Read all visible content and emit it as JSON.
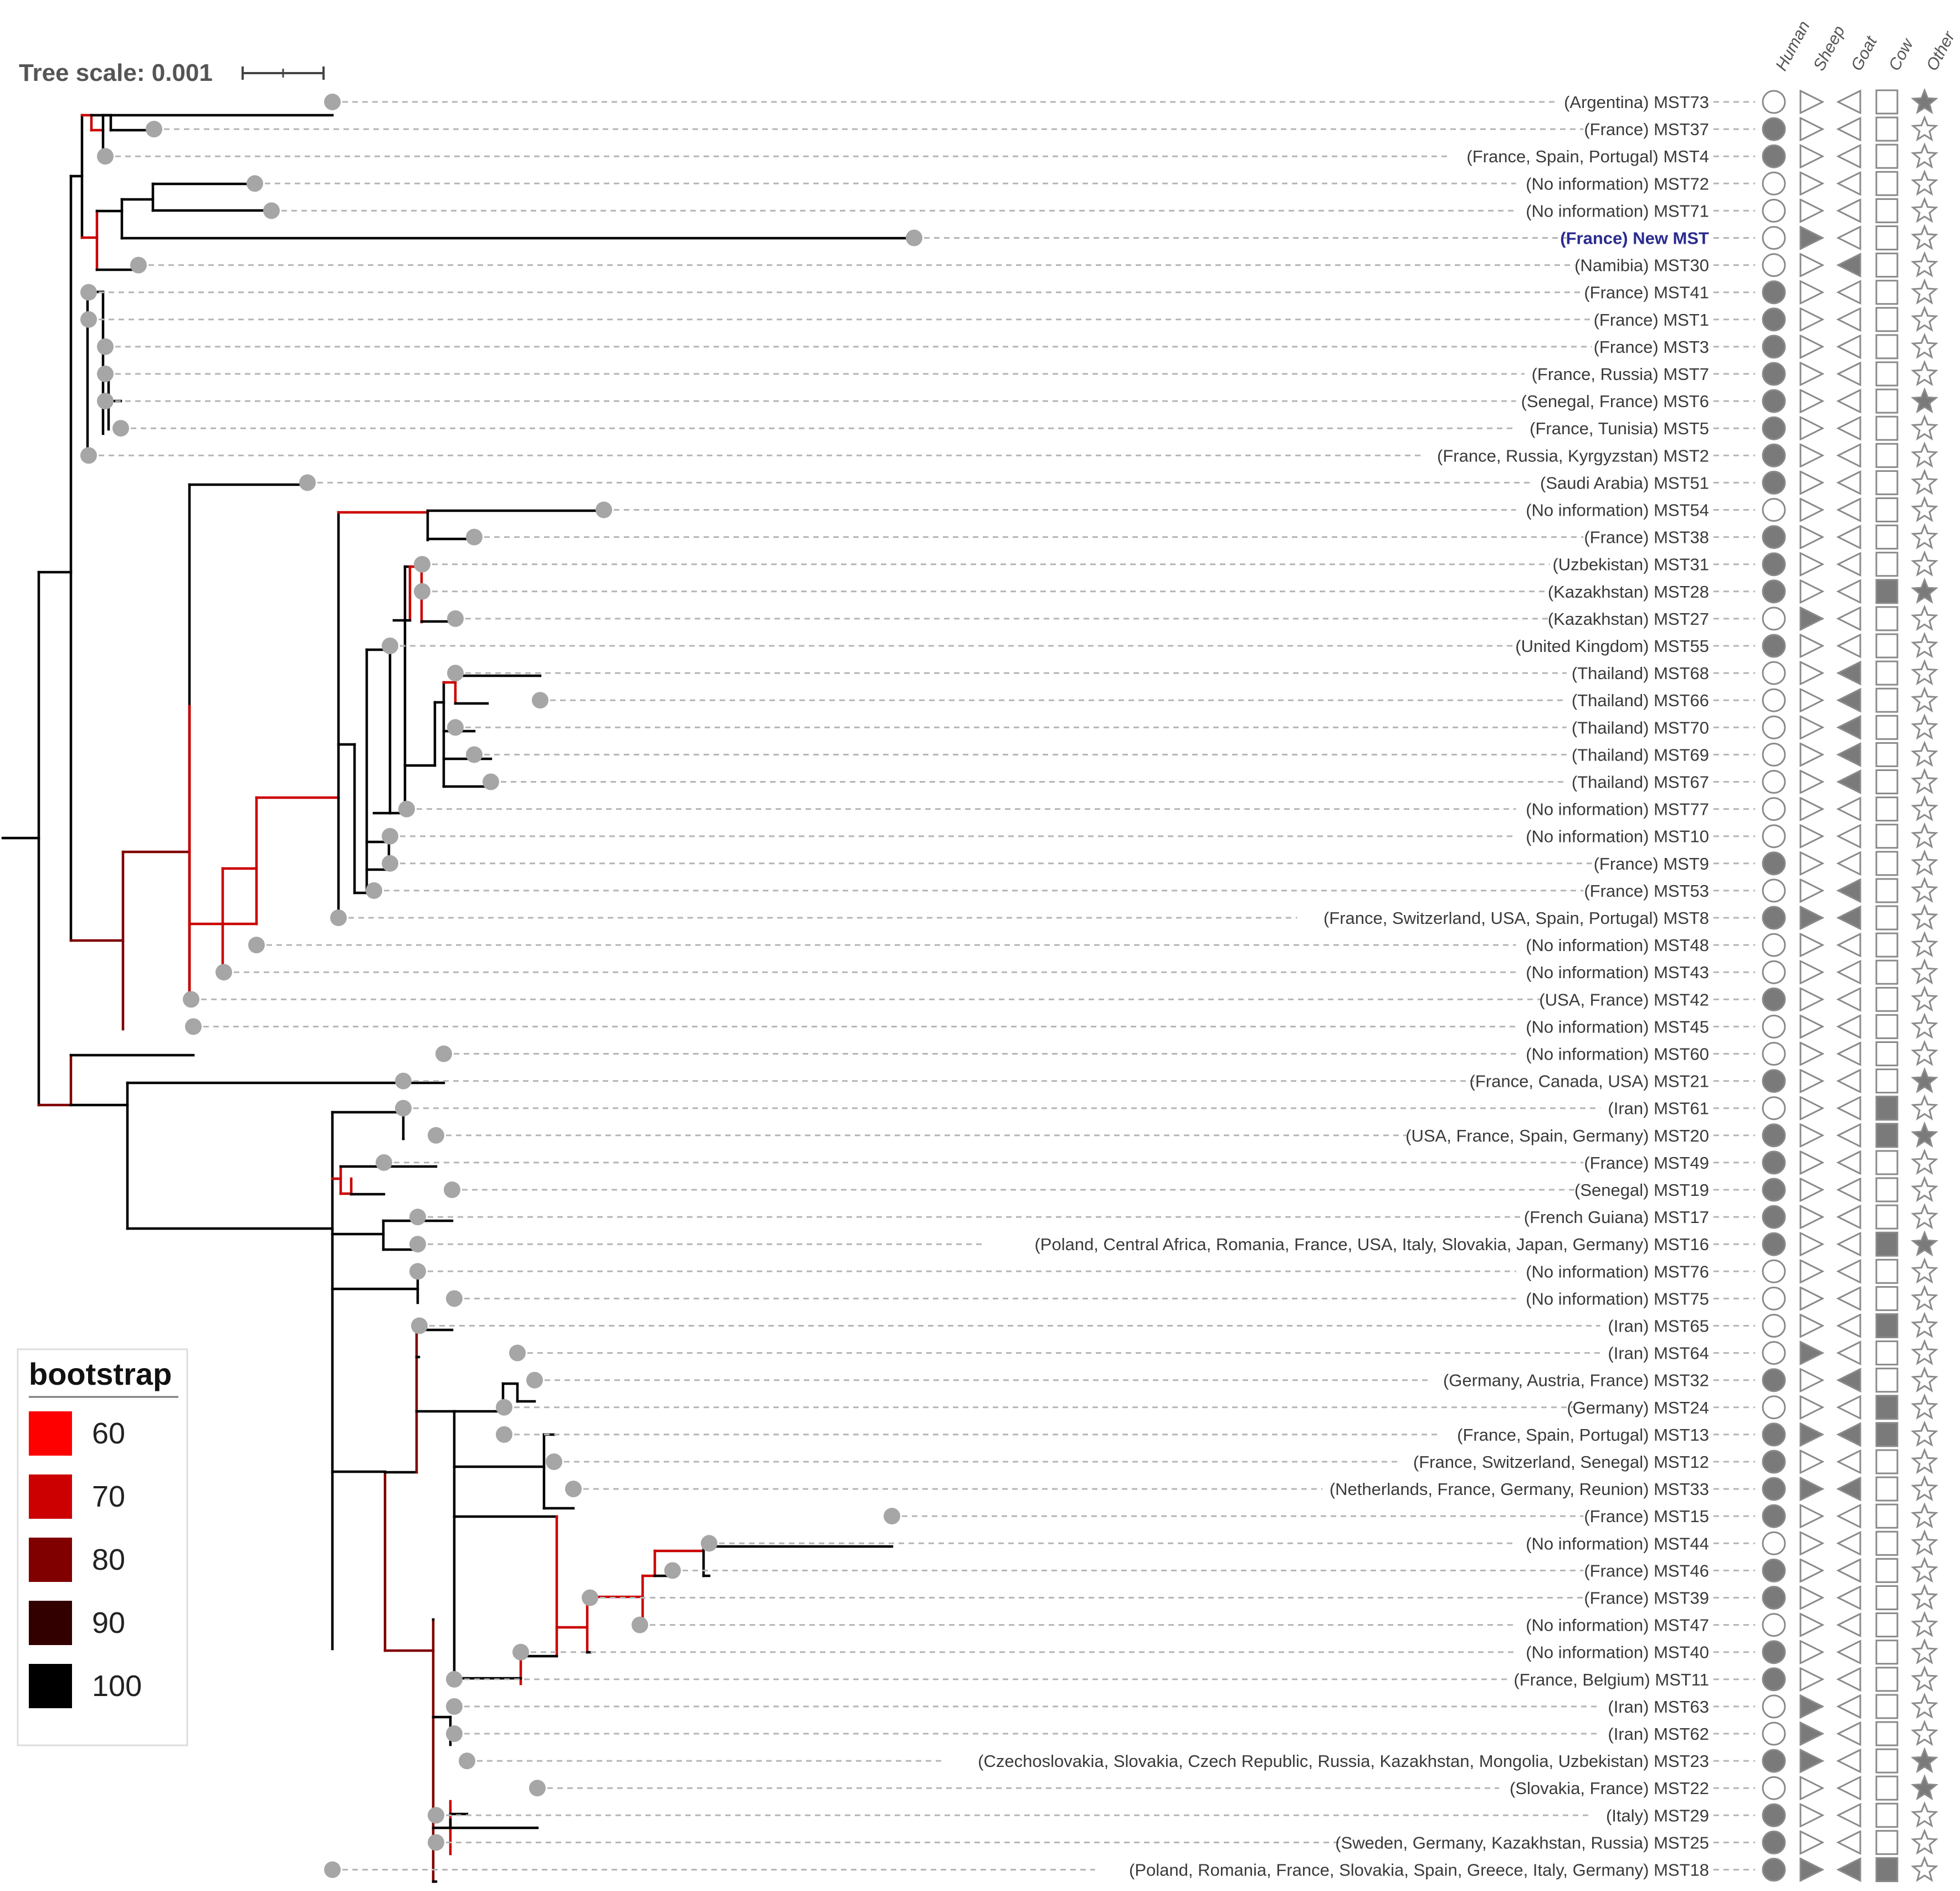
{
  "tree_scale": {
    "label": "Tree scale: 0.001"
  },
  "columns": [
    "Human",
    "Sheep",
    "Goat",
    "Cow",
    "Other"
  ],
  "legend": {
    "title": "bootstrap",
    "items": [
      {
        "label": "60",
        "color": "#ff0000"
      },
      {
        "label": "70",
        "color": "#cc0000"
      },
      {
        "label": "80",
        "color": "#800000"
      },
      {
        "label": "90",
        "color": "#330000"
      },
      {
        "label": "100",
        "color": "#000000"
      }
    ]
  },
  "leaves": [
    {
      "label": "(Argentina) MST73",
      "traits": [
        0,
        0,
        0,
        0,
        1
      ]
    },
    {
      "label": "(France) MST37",
      "traits": [
        1,
        0,
        0,
        0,
        0
      ]
    },
    {
      "label": "(France, Spain, Portugal) MST4",
      "traits": [
        1,
        0,
        0,
        0,
        0
      ]
    },
    {
      "label": "(No information) MST72",
      "traits": [
        0,
        0,
        0,
        0,
        0
      ]
    },
    {
      "label": "(No information) MST71",
      "traits": [
        0,
        0,
        0,
        0,
        0
      ]
    },
    {
      "label": "(France) New MST",
      "traits": [
        0,
        1,
        0,
        0,
        0
      ],
      "highlight": true
    },
    {
      "label": "(Namibia) MST30",
      "traits": [
        0,
        0,
        1,
        0,
        0
      ]
    },
    {
      "label": "(France) MST41",
      "traits": [
        1,
        0,
        0,
        0,
        0
      ]
    },
    {
      "label": "(France) MST1",
      "traits": [
        1,
        0,
        0,
        0,
        0
      ]
    },
    {
      "label": "(France) MST3",
      "traits": [
        1,
        0,
        0,
        0,
        0
      ]
    },
    {
      "label": "(France, Russia) MST7",
      "traits": [
        1,
        0,
        0,
        0,
        0
      ]
    },
    {
      "label": "(Senegal, France) MST6",
      "traits": [
        1,
        0,
        0,
        0,
        1
      ]
    },
    {
      "label": "(France, Tunisia) MST5",
      "traits": [
        1,
        0,
        0,
        0,
        0
      ]
    },
    {
      "label": "(France, Russia, Kyrgyzstan) MST2",
      "traits": [
        1,
        0,
        0,
        0,
        0
      ]
    },
    {
      "label": "(Saudi Arabia) MST51",
      "traits": [
        1,
        0,
        0,
        0,
        0
      ]
    },
    {
      "label": "(No information) MST54",
      "traits": [
        0,
        0,
        0,
        0,
        0
      ]
    },
    {
      "label": "(France) MST38",
      "traits": [
        1,
        0,
        0,
        0,
        0
      ]
    },
    {
      "label": "(Uzbekistan) MST31",
      "traits": [
        1,
        0,
        0,
        0,
        0
      ]
    },
    {
      "label": "(Kazakhstan) MST28",
      "traits": [
        1,
        0,
        0,
        1,
        1
      ]
    },
    {
      "label": "(Kazakhstan) MST27",
      "traits": [
        0,
        1,
        0,
        0,
        0
      ]
    },
    {
      "label": "(United Kingdom) MST55",
      "traits": [
        1,
        0,
        0,
        0,
        0
      ]
    },
    {
      "label": "(Thailand) MST68",
      "traits": [
        0,
        0,
        1,
        0,
        0
      ]
    },
    {
      "label": "(Thailand) MST66",
      "traits": [
        0,
        0,
        1,
        0,
        0
      ]
    },
    {
      "label": "(Thailand) MST70",
      "traits": [
        0,
        0,
        1,
        0,
        0
      ]
    },
    {
      "label": "(Thailand) MST69",
      "traits": [
        0,
        0,
        1,
        0,
        0
      ]
    },
    {
      "label": "(Thailand) MST67",
      "traits": [
        0,
        0,
        1,
        0,
        0
      ]
    },
    {
      "label": "(No information) MST77",
      "traits": [
        0,
        0,
        0,
        0,
        0
      ]
    },
    {
      "label": "(No information) MST10",
      "traits": [
        0,
        0,
        0,
        0,
        0
      ]
    },
    {
      "label": "(France) MST9",
      "traits": [
        1,
        0,
        0,
        0,
        0
      ]
    },
    {
      "label": "(France) MST53",
      "traits": [
        0,
        0,
        1,
        0,
        0
      ]
    },
    {
      "label": "(France, Switzerland, USA, Spain, Portugal) MST8",
      "traits": [
        1,
        1,
        1,
        0,
        0
      ]
    },
    {
      "label": "(No information) MST48",
      "traits": [
        0,
        0,
        0,
        0,
        0
      ]
    },
    {
      "label": "(No information) MST43",
      "traits": [
        0,
        0,
        0,
        0,
        0
      ]
    },
    {
      "label": "(USA, France) MST42",
      "traits": [
        1,
        0,
        0,
        0,
        0
      ]
    },
    {
      "label": "(No information) MST45",
      "traits": [
        0,
        0,
        0,
        0,
        0
      ]
    },
    {
      "label": "(No information) MST60",
      "traits": [
        0,
        0,
        0,
        0,
        0
      ]
    },
    {
      "label": "(France, Canada, USA) MST21",
      "traits": [
        1,
        0,
        0,
        0,
        1
      ]
    },
    {
      "label": "(Iran) MST61",
      "traits": [
        0,
        0,
        0,
        1,
        0
      ]
    },
    {
      "label": "(USA, France, Spain, Germany) MST20",
      "traits": [
        1,
        0,
        0,
        1,
        1
      ]
    },
    {
      "label": "(France) MST49",
      "traits": [
        1,
        0,
        0,
        0,
        0
      ]
    },
    {
      "label": "(Senegal) MST19",
      "traits": [
        1,
        0,
        0,
        0,
        0
      ]
    },
    {
      "label": "(French Guiana) MST17",
      "traits": [
        1,
        0,
        0,
        0,
        0
      ]
    },
    {
      "label": "(Poland, Central Africa, Romania, France, USA, Italy, Slovakia, Japan, Germany) MST16",
      "traits": [
        1,
        0,
        0,
        1,
        1
      ]
    },
    {
      "label": "(No information) MST76",
      "traits": [
        0,
        0,
        0,
        0,
        0
      ]
    },
    {
      "label": "(No information) MST75",
      "traits": [
        0,
        0,
        0,
        0,
        0
      ]
    },
    {
      "label": "(Iran) MST65",
      "traits": [
        0,
        0,
        0,
        1,
        0
      ]
    },
    {
      "label": "(Iran) MST64",
      "traits": [
        0,
        1,
        0,
        0,
        0
      ]
    },
    {
      "label": "(Germany, Austria, France) MST32",
      "traits": [
        1,
        0,
        1,
        0,
        0
      ]
    },
    {
      "label": "(Germany) MST24",
      "traits": [
        0,
        0,
        0,
        1,
        0
      ]
    },
    {
      "label": "(France, Spain, Portugal) MST13",
      "traits": [
        1,
        1,
        1,
        1,
        0
      ]
    },
    {
      "label": "(France, Switzerland, Senegal) MST12",
      "traits": [
        1,
        0,
        0,
        0,
        0
      ]
    },
    {
      "label": "(Netherlands, France, Germany, Reunion) MST33",
      "traits": [
        1,
        1,
        1,
        0,
        0
      ]
    },
    {
      "label": "(France) MST15",
      "traits": [
        1,
        0,
        0,
        0,
        0
      ]
    },
    {
      "label": "(No information) MST44",
      "traits": [
        0,
        0,
        0,
        0,
        0
      ]
    },
    {
      "label": "(France) MST46",
      "traits": [
        1,
        0,
        0,
        0,
        0
      ]
    },
    {
      "label": "(France) MST39",
      "traits": [
        1,
        0,
        0,
        0,
        0
      ]
    },
    {
      "label": "(No information) MST47",
      "traits": [
        0,
        0,
        0,
        0,
        0
      ]
    },
    {
      "label": "(No information) MST40",
      "traits": [
        1,
        0,
        0,
        0,
        0
      ]
    },
    {
      "label": "(France, Belgium) MST11",
      "traits": [
        1,
        0,
        0,
        0,
        0
      ]
    },
    {
      "label": "(Iran) MST63",
      "traits": [
        0,
        1,
        0,
        0,
        0
      ]
    },
    {
      "label": "(Iran) MST62",
      "traits": [
        0,
        1,
        0,
        0,
        0
      ]
    },
    {
      "label": "(Czechoslovakia, Slovakia, Czech Republic, Russia, Kazakhstan, Mongolia, Uzbekistan) MST23",
      "traits": [
        1,
        1,
        0,
        0,
        1
      ]
    },
    {
      "label": "(Slovakia, France) MST22",
      "traits": [
        0,
        0,
        0,
        0,
        1
      ]
    },
    {
      "label": "(Italy) MST29",
      "traits": [
        1,
        0,
        0,
        0,
        0
      ]
    },
    {
      "label": "(Sweden, Germany, Kazakhstan, Russia) MST25",
      "traits": [
        1,
        0,
        0,
        0,
        0
      ]
    },
    {
      "label": "(Poland, Romania, France, Slovakia, Spain, Greece, Italy, Germany) MST18",
      "traits": [
        1,
        1,
        1,
        1,
        0
      ]
    }
  ]
}
